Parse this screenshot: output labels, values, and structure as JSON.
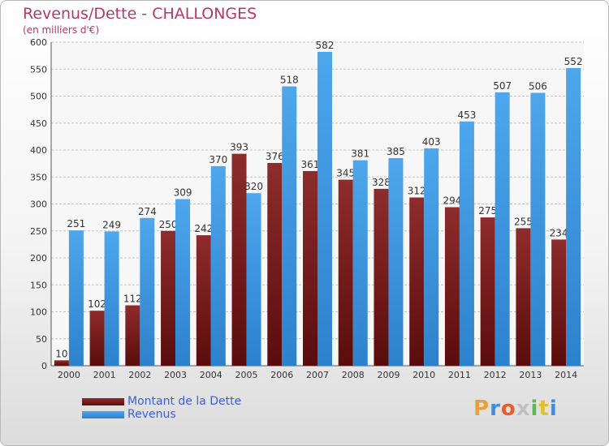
{
  "header": {
    "title": "Revenus/Dette - CHALLONGES",
    "subtitle": "(en milliers d'€)"
  },
  "logo": {
    "text": "Proxiti",
    "letters": [
      "P",
      "r",
      "o",
      "x",
      "i",
      "t",
      "i"
    ],
    "colors": [
      "#e8a03a",
      "#3c8ee0",
      "#e85c2a",
      "#c0c0c0",
      "#5cb85c",
      "#e0c030",
      "#3c8ee0"
    ]
  },
  "chart_data": {
    "type": "bar",
    "title": "Revenus/Dette - CHALLONGES",
    "ylabel": "(en milliers d'€)",
    "categories": [
      "2000",
      "2001",
      "2002",
      "2003",
      "2004",
      "2005",
      "2006",
      "2007",
      "2008",
      "2009",
      "2010",
      "2011",
      "2012",
      "2013",
      "2014"
    ],
    "ylim": [
      0,
      600
    ],
    "yticks": [
      0,
      50,
      100,
      150,
      200,
      250,
      300,
      350,
      400,
      450,
      500,
      550,
      600
    ],
    "grid": true,
    "legend_position": "bottom-left",
    "series": [
      {
        "name": "Montant de la Dette",
        "color": "#7a1e1e",
        "values": [
          10,
          102,
          112,
          250,
          242,
          393,
          376,
          361,
          345,
          328,
          312,
          294,
          275,
          255,
          234
        ],
        "labels": [
          "10",
          "102",
          "112",
          "250",
          "242",
          "393",
          "376",
          "361",
          "345",
          "328",
          "312",
          "294",
          "275",
          "255",
          "234"
        ]
      },
      {
        "name": "Revenus",
        "color": "#3d9be6",
        "values": [
          251,
          249,
          274,
          309,
          370,
          320,
          518,
          582,
          381,
          385,
          403,
          453,
          507,
          506,
          552
        ],
        "labels": [
          "251",
          "249",
          "274",
          "309",
          "370",
          "320",
          "518",
          "582",
          "381",
          "385",
          "403",
          "453",
          "507",
          "506",
          "552"
        ]
      }
    ]
  }
}
